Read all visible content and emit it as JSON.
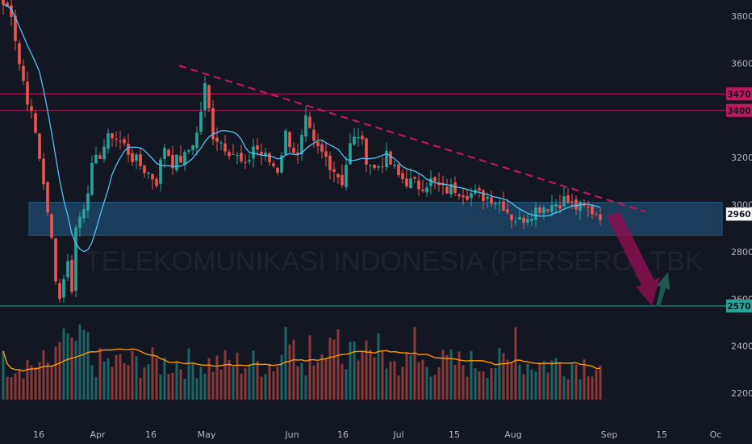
{
  "watermark": "TELEKOMUNIKASI INDONESIA (PERSERO) TBK",
  "colors": {
    "background": "#131722",
    "up": "#26a69a",
    "down": "#ef5350",
    "level_line": "#c2185b",
    "support_line": "#26a69a",
    "zone_fill": "#1e4a6e",
    "ma": "#4fc3f7",
    "volume_ma": "#ff9800",
    "trendline": "#c2185b",
    "down_arrow": "#880e4f",
    "up_arrow": "#1b5e50"
  },
  "chart_data": {
    "type": "candlestick",
    "y_axis": {
      "ticks": [
        3800,
        3600,
        3400,
        3200,
        3000,
        2800,
        2600,
        2400,
        2200
      ],
      "range": [
        2100,
        3870
      ],
      "position": "right"
    },
    "x_axis": {
      "ticks": [
        "16",
        "Apr",
        "16",
        "May",
        "Jun",
        "16",
        "Jul",
        "15",
        "Aug",
        "Sep",
        "15",
        "Oc"
      ]
    },
    "price_levels": [
      {
        "price": 3470,
        "label": "3470",
        "color": "#c2185b"
      },
      {
        "price": 3400,
        "label": "3400",
        "color": "#c2185b"
      },
      {
        "price": 2570,
        "label": "2570",
        "color": "#26a69a"
      }
    ],
    "current_price": {
      "price": 2960,
      "label": "2960"
    },
    "support_zone": {
      "from": 2870,
      "to": 3010
    },
    "trendline": {
      "from_price": 3590,
      "to_price": 2970
    },
    "anchors": [
      [
        0,
        3850
      ],
      [
        2,
        3820
      ],
      [
        4,
        3600
      ],
      [
        6,
        3450
      ],
      [
        8,
        3300
      ],
      [
        10,
        3100
      ],
      [
        11,
        2950
      ],
      [
        12,
        2850
      ],
      [
        13,
        2700
      ],
      [
        14,
        2600
      ],
      [
        15,
        2700
      ],
      [
        16,
        2750
      ],
      [
        17,
        2650
      ],
      [
        18,
        2900
      ],
      [
        20,
        3000
      ],
      [
        22,
        3150
      ],
      [
        25,
        3250
      ],
      [
        27,
        3300
      ],
      [
        30,
        3250
      ],
      [
        32,
        3200
      ],
      [
        35,
        3150
      ],
      [
        38,
        3100
      ],
      [
        40,
        3250
      ],
      [
        42,
        3180
      ],
      [
        45,
        3200
      ],
      [
        48,
        3300
      ],
      [
        50,
        3500
      ],
      [
        52,
        3300
      ],
      [
        55,
        3250
      ],
      [
        58,
        3200
      ],
      [
        60,
        3150
      ],
      [
        62,
        3250
      ],
      [
        65,
        3200
      ],
      [
        68,
        3150
      ],
      [
        70,
        3300
      ],
      [
        73,
        3200
      ],
      [
        75,
        3350
      ],
      [
        77,
        3250
      ],
      [
        80,
        3200
      ],
      [
        82,
        3150
      ],
      [
        84,
        3100
      ],
      [
        86,
        3250
      ],
      [
        88,
        3300
      ],
      [
        90,
        3200
      ],
      [
        92,
        3150
      ],
      [
        95,
        3200
      ],
      [
        98,
        3120
      ],
      [
        100,
        3100
      ],
      [
        103,
        3080
      ],
      [
        106,
        3100
      ],
      [
        109,
        3060
      ],
      [
        112,
        3070
      ],
      [
        115,
        3050
      ],
      [
        118,
        3040
      ],
      [
        121,
        3030
      ],
      [
        124,
        3000
      ],
      [
        126,
        2950
      ],
      [
        128,
        2930
      ],
      [
        130,
        2960
      ],
      [
        133,
        2990
      ],
      [
        136,
        3000
      ],
      [
        139,
        3020
      ],
      [
        142,
        2990
      ],
      [
        145,
        2980
      ],
      [
        148,
        2960
      ]
    ]
  }
}
